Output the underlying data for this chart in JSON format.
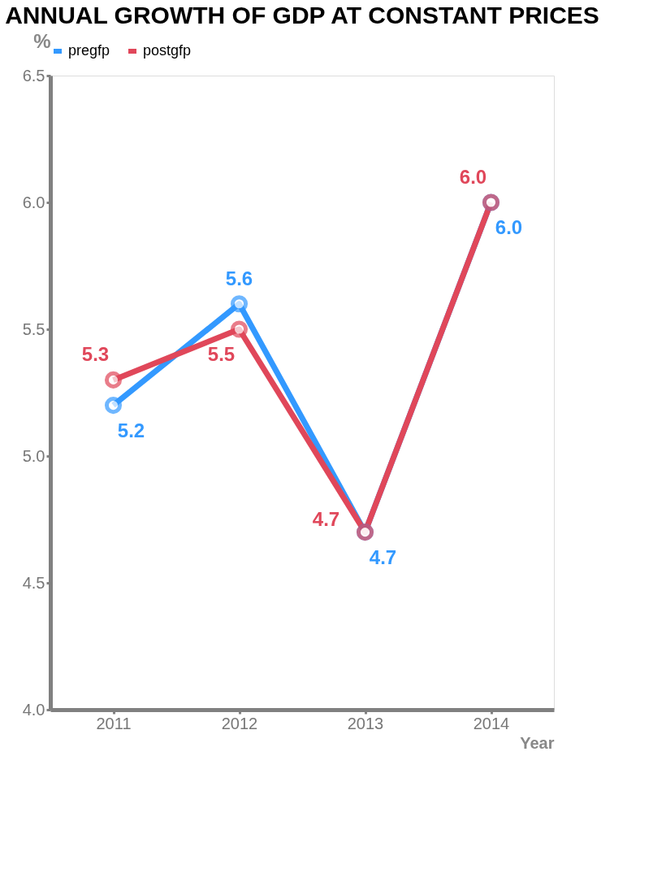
{
  "chart_data": {
    "type": "line",
    "title": "ANNUAL GROWTH OF GDP AT CONSTANT PRICES",
    "xlabel": "Year",
    "ylabel": "%",
    "categories": [
      "2011",
      "2012",
      "2013",
      "2014"
    ],
    "series": [
      {
        "name": "pregfp",
        "color": "#3399ff",
        "values": [
          5.2,
          5.6,
          4.7,
          6.0
        ],
        "value_labels": [
          "5.2",
          "5.6",
          "4.7",
          "6.0"
        ]
      },
      {
        "name": "postgfp",
        "color": "#e0475a",
        "values": [
          5.3,
          5.5,
          4.7,
          6.0
        ],
        "value_labels": [
          "5.3",
          "5.5",
          "4.7",
          "6.0"
        ]
      }
    ],
    "ylim": [
      4,
      6.5
    ],
    "yticks": [
      {
        "value": 4,
        "label": "4.0"
      },
      {
        "value": 4.5,
        "label": "4.5"
      },
      {
        "value": 5,
        "label": "5.0"
      },
      {
        "value": 5.5,
        "label": "5.5"
      },
      {
        "value": 6,
        "label": "6.0"
      },
      {
        "value": 6.5,
        "label": "6.5"
      }
    ],
    "grid": false,
    "legend": "top",
    "marker": "circle",
    "line_style": "solid"
  }
}
